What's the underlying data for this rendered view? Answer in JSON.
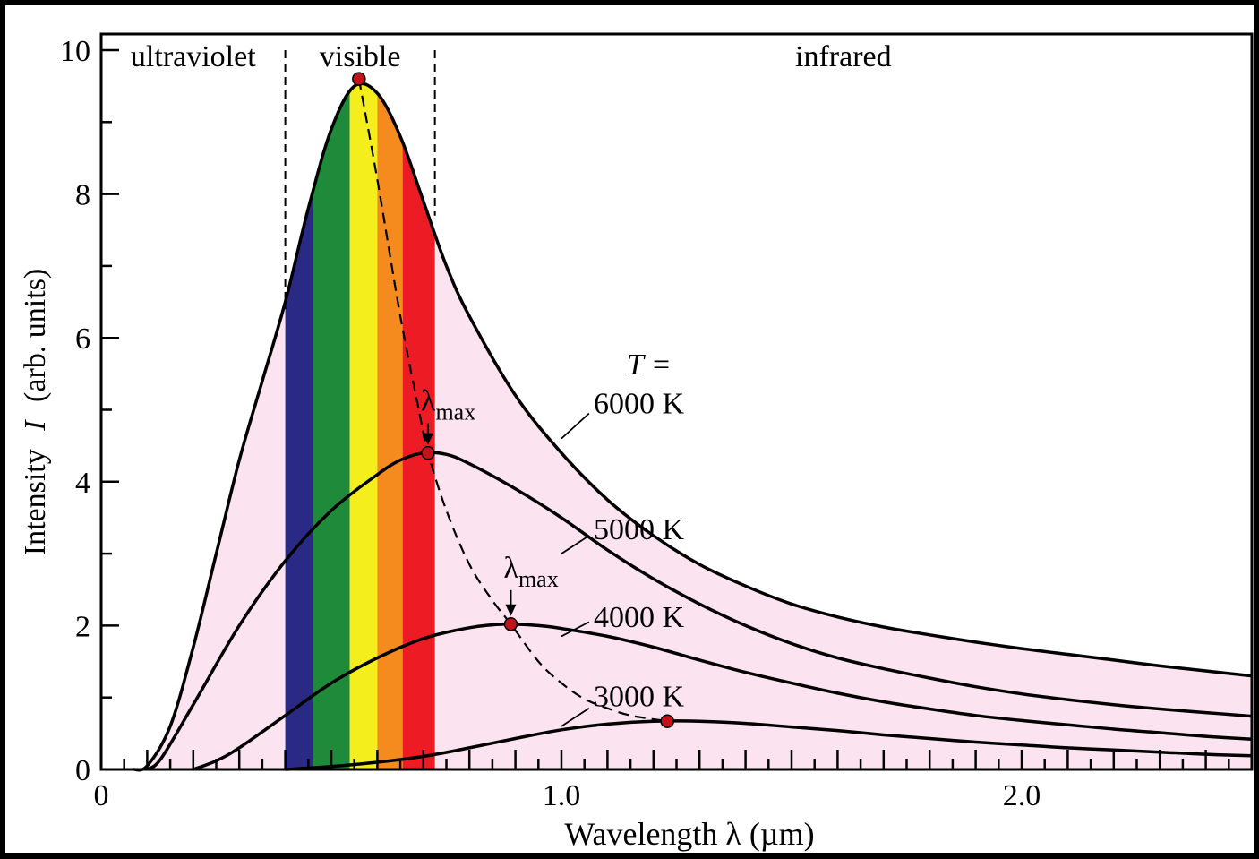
{
  "chart_data": {
    "type": "line",
    "xlabel": "Wavelength  λ  (µm)",
    "ylabel_main": "Intensity",
    "ylabel_symbol": "I",
    "ylabel_units": "(arb. units)",
    "xlim": [
      0,
      2.5
    ],
    "ylim": [
      0,
      10
    ],
    "x_ticks": [
      {
        "value": 0,
        "label": "0"
      },
      {
        "value": 1.0,
        "label": "1.0"
      },
      {
        "value": 2.0,
        "label": "2.0"
      }
    ],
    "y_ticks": [
      {
        "value": 0,
        "label": "0"
      },
      {
        "value": 2,
        "label": "2"
      },
      {
        "value": 4,
        "label": "4"
      },
      {
        "value": 6,
        "label": "6"
      },
      {
        "value": 8,
        "label": "8"
      },
      {
        "value": 10,
        "label": "10"
      }
    ],
    "regions": [
      {
        "label": "ultraviolet",
        "x_from": 0,
        "x_to": 0.4
      },
      {
        "label": "visible",
        "x_from": 0.4,
        "x_to": 0.725
      },
      {
        "label": "infrared",
        "x_from": 0.725,
        "x_to": 2.5
      }
    ],
    "region_boundaries": [
      0.4,
      0.725
    ],
    "visible_bands": [
      {
        "color": "#2a2a86",
        "x_from": 0.4,
        "x_to": 0.46
      },
      {
        "color": "#1f8a3a",
        "x_from": 0.46,
        "x_to": 0.54
      },
      {
        "color": "#f4ef1c",
        "x_from": 0.54,
        "x_to": 0.6
      },
      {
        "color": "#f58a1f",
        "x_from": 0.6,
        "x_to": 0.655
      },
      {
        "color": "#ed1c24",
        "x_from": 0.655,
        "x_to": 0.725
      }
    ],
    "fill_color": "#fbe3ef",
    "temperature_label": "T =",
    "series": [
      {
        "name": "6000 K",
        "points": [
          [
            0.07,
            0
          ],
          [
            0.1,
            0.05
          ],
          [
            0.15,
            0.6
          ],
          [
            0.2,
            1.7
          ],
          [
            0.25,
            3.0
          ],
          [
            0.3,
            4.3
          ],
          [
            0.35,
            5.4
          ],
          [
            0.4,
            6.5
          ],
          [
            0.45,
            7.8
          ],
          [
            0.5,
            8.9
          ],
          [
            0.55,
            9.5
          ],
          [
            0.6,
            9.4
          ],
          [
            0.65,
            8.8
          ],
          [
            0.7,
            7.9
          ],
          [
            0.75,
            7.0
          ],
          [
            0.8,
            6.3
          ],
          [
            0.9,
            5.2
          ],
          [
            1.0,
            4.4
          ],
          [
            1.1,
            3.75
          ],
          [
            1.2,
            3.25
          ],
          [
            1.3,
            2.85
          ],
          [
            1.4,
            2.55
          ],
          [
            1.5,
            2.3
          ],
          [
            1.6,
            2.12
          ],
          [
            1.7,
            1.98
          ],
          [
            1.8,
            1.87
          ],
          [
            1.9,
            1.77
          ],
          [
            2.0,
            1.68
          ],
          [
            2.1,
            1.6
          ],
          [
            2.2,
            1.52
          ],
          [
            2.3,
            1.44
          ],
          [
            2.4,
            1.37
          ],
          [
            2.5,
            1.3
          ]
        ]
      },
      {
        "name": "5000 K",
        "points": [
          [
            0.1,
            0
          ],
          [
            0.13,
            0.15
          ],
          [
            0.2,
            0.9
          ],
          [
            0.3,
            2.0
          ],
          [
            0.4,
            2.9
          ],
          [
            0.5,
            3.6
          ],
          [
            0.6,
            4.1
          ],
          [
            0.65,
            4.3
          ],
          [
            0.7,
            4.4
          ],
          [
            0.75,
            4.38
          ],
          [
            0.8,
            4.25
          ],
          [
            0.9,
            3.9
          ],
          [
            1.0,
            3.5
          ],
          [
            1.1,
            3.05
          ],
          [
            1.2,
            2.65
          ],
          [
            1.3,
            2.3
          ],
          [
            1.4,
            2.0
          ],
          [
            1.5,
            1.75
          ],
          [
            1.6,
            1.55
          ],
          [
            1.7,
            1.4
          ],
          [
            1.8,
            1.27
          ],
          [
            1.9,
            1.15
          ],
          [
            2.0,
            1.05
          ],
          [
            2.1,
            0.97
          ],
          [
            2.2,
            0.9
          ],
          [
            2.3,
            0.84
          ],
          [
            2.4,
            0.79
          ],
          [
            2.5,
            0.74
          ]
        ]
      },
      {
        "name": "4000 K",
        "points": [
          [
            0.2,
            0
          ],
          [
            0.25,
            0.12
          ],
          [
            0.3,
            0.3
          ],
          [
            0.4,
            0.75
          ],
          [
            0.5,
            1.2
          ],
          [
            0.6,
            1.55
          ],
          [
            0.7,
            1.82
          ],
          [
            0.8,
            1.97
          ],
          [
            0.88,
            2.02
          ],
          [
            0.95,
            2.0
          ],
          [
            1.0,
            1.96
          ],
          [
            1.1,
            1.85
          ],
          [
            1.2,
            1.7
          ],
          [
            1.3,
            1.52
          ],
          [
            1.4,
            1.35
          ],
          [
            1.5,
            1.2
          ],
          [
            1.6,
            1.06
          ],
          [
            1.7,
            0.94
          ],
          [
            1.8,
            0.84
          ],
          [
            1.9,
            0.75
          ],
          [
            2.0,
            0.68
          ],
          [
            2.1,
            0.62
          ],
          [
            2.2,
            0.56
          ],
          [
            2.3,
            0.51
          ],
          [
            2.4,
            0.46
          ],
          [
            2.5,
            0.42
          ]
        ]
      },
      {
        "name": "3000 K",
        "points": [
          [
            0.4,
            0
          ],
          [
            0.5,
            0.04
          ],
          [
            0.6,
            0.1
          ],
          [
            0.7,
            0.18
          ],
          [
            0.8,
            0.3
          ],
          [
            0.9,
            0.43
          ],
          [
            1.0,
            0.55
          ],
          [
            1.1,
            0.63
          ],
          [
            1.2,
            0.67
          ],
          [
            1.3,
            0.67
          ],
          [
            1.4,
            0.64
          ],
          [
            1.5,
            0.59
          ],
          [
            1.6,
            0.54
          ],
          [
            1.7,
            0.48
          ],
          [
            1.8,
            0.43
          ],
          [
            1.9,
            0.38
          ],
          [
            2.0,
            0.34
          ],
          [
            2.1,
            0.3
          ],
          [
            2.2,
            0.27
          ],
          [
            2.3,
            0.24
          ],
          [
            2.4,
            0.21
          ],
          [
            2.5,
            0.19
          ]
        ]
      }
    ],
    "peaks": [
      {
        "x": 0.56,
        "y": 9.6
      },
      {
        "x": 0.71,
        "y": 4.4
      },
      {
        "x": 0.89,
        "y": 2.02
      },
      {
        "x": 1.23,
        "y": 0.67
      }
    ],
    "wien_curve": [
      [
        0.56,
        9.6
      ],
      [
        0.6,
        8.2
      ],
      [
        0.65,
        6.3
      ],
      [
        0.69,
        5.0
      ],
      [
        0.71,
        4.4
      ],
      [
        0.75,
        3.6
      ],
      [
        0.8,
        2.85
      ],
      [
        0.85,
        2.35
      ],
      [
        0.89,
        2.02
      ],
      [
        0.95,
        1.5
      ],
      [
        1.0,
        1.2
      ],
      [
        1.05,
        0.98
      ],
      [
        1.1,
        0.85
      ],
      [
        1.15,
        0.75
      ],
      [
        1.23,
        0.67
      ]
    ],
    "annotations": [
      {
        "text": "λ",
        "sub": "max",
        "x": 0.71,
        "y": 4.4
      },
      {
        "text": "λ",
        "sub": "max",
        "x": 0.89,
        "y": 2.02
      }
    ]
  }
}
